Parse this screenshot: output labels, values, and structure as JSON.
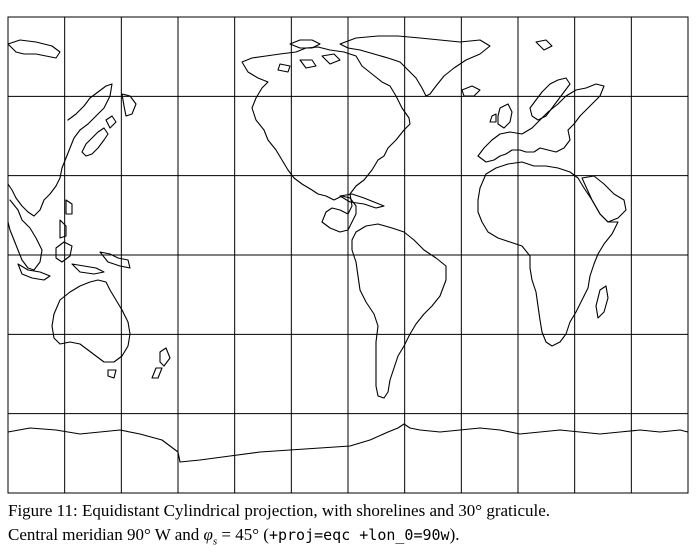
{
  "figure": {
    "caption_line1": "Figure 11: Equidistant Cylindrical projection, with shorelines and 30° graticule.",
    "caption_line2_prefix": "Central meridian 90° W and ",
    "phi_symbol": "φ",
    "phi_sub": "s",
    "phi_value": " = 45° (",
    "proj_string": "+proj=eqc +lon_0=90w",
    "caption_line2_suffix": ")."
  },
  "map": {
    "projection": "equidistant cylindrical",
    "central_meridian_deg": -90,
    "standard_parallel_deg": 45,
    "graticule_interval_deg": 30,
    "line_color": "#000000",
    "background_color": "#ffffff"
  }
}
